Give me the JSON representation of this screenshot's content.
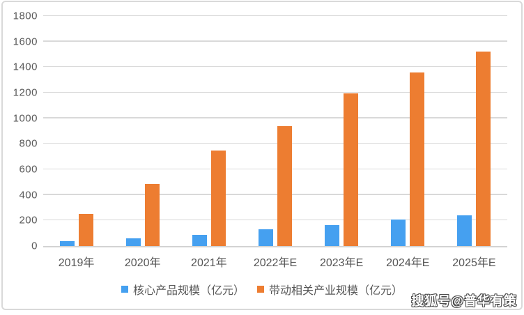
{
  "chart_data": {
    "type": "bar",
    "title": "",
    "xlabel": "",
    "ylabel": "",
    "categories": [
      "2019年",
      "2020年",
      "2021年",
      "2022年E",
      "2023年E",
      "2024年E",
      "2025年E"
    ],
    "series": [
      {
        "name": "核心产品规模（亿元）",
        "color": "#45A0F0",
        "values": [
          40,
          60,
          90,
          130,
          165,
          205,
          240
        ]
      },
      {
        "name": "带动相关产业规模（亿元）",
        "color": "#ED7D31",
        "values": [
          250,
          485,
          745,
          940,
          1195,
          1360,
          1520
        ]
      }
    ],
    "ylim": [
      0,
      1800
    ],
    "yticks": [
      1800,
      1600,
      1400,
      1200,
      1000,
      800,
      600,
      400,
      200,
      0
    ],
    "grid": true,
    "gridline_color": "#d9d9d9",
    "axis_text_color": "#595959",
    "legend_position": "bottom"
  },
  "watermark": {
    "text": "搜狐号@普华有策"
  }
}
